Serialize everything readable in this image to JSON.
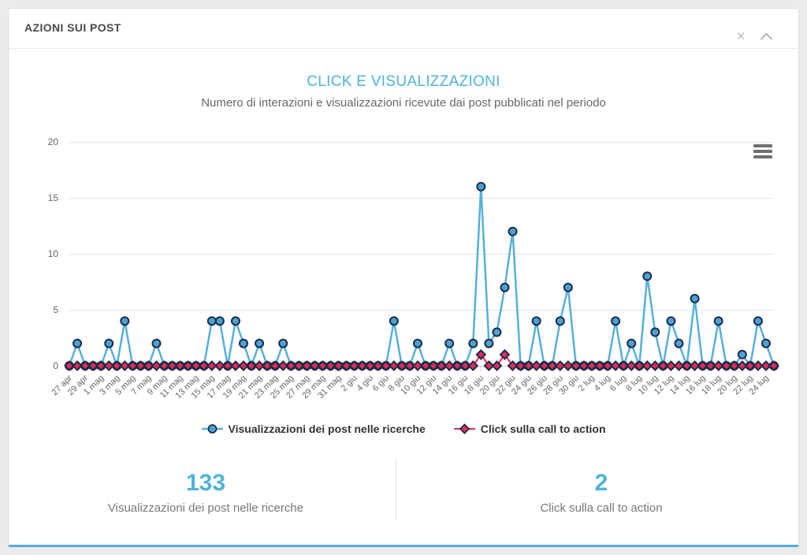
{
  "panel": {
    "title": "AZIONI SUI POST"
  },
  "icons": {
    "close": "×"
  },
  "colors": {
    "accent_blue": "#4FB3DB",
    "marker_stroke": "#1C2B4A",
    "grid": "#e6e6e6",
    "axis": "#ccd6eb"
  },
  "stats": [
    {
      "value": "133",
      "label": "Visualizzazioni dei post nelle ricerche"
    },
    {
      "value": "2",
      "label": "Click sulla call to action"
    }
  ],
  "chart_data": {
    "type": "line",
    "title": "CLICK E VISUALIZZAZIONI",
    "subtitle": "Numero di interazioni e visualizzazioni ricevute dai post pubblicati nel periodo",
    "ylim": [
      0,
      20
    ],
    "yticks": [
      0,
      5,
      10,
      15,
      20
    ],
    "xtick_every": 2,
    "label_rotation": -45,
    "grid": true,
    "legend_position": "bottom",
    "x": [
      "27 apr",
      "28 apr",
      "29 apr",
      "30 apr",
      "1 mag",
      "2 mag",
      "3 mag",
      "4 mag",
      "5 mag",
      "6 mag",
      "7 mag",
      "8 mag",
      "9 mag",
      "10 mag",
      "11 mag",
      "12 mag",
      "13 mag",
      "14 mag",
      "15 mag",
      "16 mag",
      "17 mag",
      "18 mag",
      "19 mag",
      "20 mag",
      "21 mag",
      "22 mag",
      "23 mag",
      "24 mag",
      "25 mag",
      "26 mag",
      "27 mag",
      "28 mag",
      "29 mag",
      "30 mag",
      "31 mag",
      "1 giu",
      "2 giu",
      "3 giu",
      "4 giu",
      "5 giu",
      "6 giu",
      "7 giu",
      "8 giu",
      "9 giu",
      "10 giu",
      "11 giu",
      "12 giu",
      "13 giu",
      "14 giu",
      "15 giu",
      "16 giu",
      "17 giu",
      "18 giu",
      "19 giu",
      "20 giu",
      "21 giu",
      "22 giu",
      "23 giu",
      "24 giu",
      "25 giu",
      "26 giu",
      "27 giu",
      "28 giu",
      "29 giu",
      "30 giu",
      "1 lug",
      "2 lug",
      "3 lug",
      "4 lug",
      "5 lug",
      "6 lug",
      "7 lug",
      "8 lug",
      "9 lug",
      "10 lug",
      "11 lug",
      "12 lug",
      "13 lug",
      "14 lug",
      "15 lug",
      "16 lug",
      "17 lug",
      "18 lug",
      "19 lug",
      "20 lug",
      "21 lug",
      "22 lug",
      "23 lug",
      "24 lug",
      "25 lug"
    ],
    "series": [
      {
        "name": "Visualizzazioni dei post nelle ricerche",
        "slug": "visualizzazioni",
        "marker": "circle",
        "color": "#55B0DB",
        "marker_fill": "#4BA2D2",
        "total": 133,
        "values": [
          0,
          2,
          0,
          0,
          0,
          2,
          0,
          4,
          0,
          0,
          0,
          2,
          0,
          0,
          0,
          0,
          0,
          0,
          4,
          4,
          0,
          4,
          2,
          0,
          2,
          0,
          0,
          2,
          0,
          0,
          0,
          0,
          0,
          0,
          0,
          0,
          0,
          0,
          0,
          0,
          0,
          4,
          0,
          0,
          2,
          0,
          0,
          0,
          2,
          0,
          0,
          2,
          16,
          2,
          3,
          7,
          12,
          0,
          0,
          4,
          0,
          0,
          4,
          7,
          0,
          0,
          0,
          0,
          0,
          4,
          0,
          2,
          0,
          8,
          3,
          0,
          4,
          2,
          0,
          6,
          0,
          0,
          4,
          0,
          0,
          1,
          0,
          4,
          2,
          0
        ]
      },
      {
        "name": "Click sulla call to action",
        "slug": "click",
        "marker": "diamond",
        "color": "#E52A54",
        "marker_fill": "#E52A54",
        "total": 2,
        "values": [
          0,
          0,
          0,
          0,
          0,
          0,
          0,
          0,
          0,
          0,
          0,
          0,
          0,
          0,
          0,
          0,
          0,
          0,
          0,
          0,
          0,
          0,
          0,
          0,
          0,
          0,
          0,
          0,
          0,
          0,
          0,
          0,
          0,
          0,
          0,
          0,
          0,
          0,
          0,
          0,
          0,
          0,
          0,
          0,
          0,
          0,
          0,
          0,
          0,
          0,
          0,
          0,
          1,
          0,
          0,
          1,
          0,
          0,
          0,
          0,
          0,
          0,
          0,
          0,
          0,
          0,
          0,
          0,
          0,
          0,
          0,
          0,
          0,
          0,
          0,
          0,
          0,
          0,
          0,
          0,
          0,
          0,
          0,
          0,
          0,
          0,
          0,
          0,
          0,
          0
        ]
      }
    ]
  }
}
